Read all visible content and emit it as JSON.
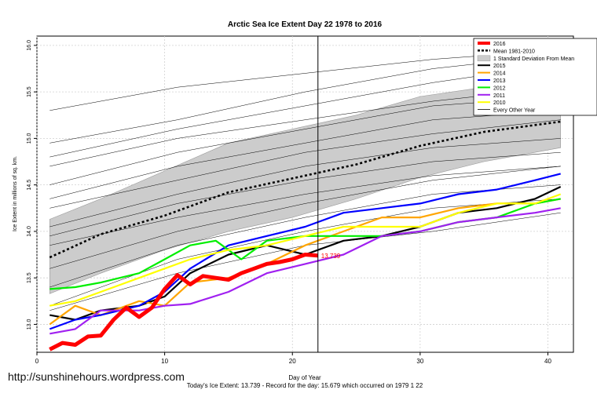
{
  "chart_data": {
    "type": "line",
    "title": "Arctic Sea Ice Extent Day 22 1978 to 2016",
    "xlabel": "Day of Year",
    "ylabel": "Ice Extent in millions of sq. km.",
    "xlim": [
      0,
      42
    ],
    "ylim": [
      12.7,
      16.1
    ],
    "xticks": [
      0,
      10,
      20,
      30,
      40
    ],
    "yticks": [
      13.0,
      13.5,
      14.0,
      14.5,
      15.0,
      15.5,
      16.0
    ],
    "grid": true,
    "legend_position": "top-right",
    "current_day": 22,
    "annotation": "13.739",
    "footer": "Today's Ice Extent: 13.739 - Record for the day: 15.679 which occurred on 1979 1 22",
    "band": {
      "name": "1 Standard Deviation From Mean",
      "color": "#cccccc",
      "x": [
        1,
        5,
        10,
        15,
        20,
        25,
        30,
        35,
        41
      ],
      "lower": [
        13.33,
        13.55,
        13.8,
        14.0,
        14.15,
        14.35,
        14.58,
        14.75,
        14.9
      ],
      "upper": [
        14.13,
        14.35,
        14.65,
        14.95,
        15.1,
        15.25,
        15.45,
        15.55,
        15.65
      ]
    },
    "background_years": {
      "name": "Every Other Year",
      "color": "#000000",
      "x": [
        1,
        11,
        21,
        31,
        41
      ],
      "lines": [
        [
          15.3,
          15.55,
          15.7,
          15.85,
          15.95
        ],
        [
          14.95,
          15.2,
          15.5,
          15.75,
          15.9
        ],
        [
          14.8,
          15.1,
          15.35,
          15.6,
          15.8
        ],
        [
          14.7,
          15.0,
          15.2,
          15.4,
          15.55
        ],
        [
          14.5,
          14.85,
          15.1,
          15.35,
          15.45
        ],
        [
          14.35,
          14.7,
          14.95,
          15.2,
          15.3
        ],
        [
          14.25,
          14.55,
          14.85,
          15.05,
          15.2
        ],
        [
          14.05,
          14.4,
          14.7,
          14.9,
          15.0
        ],
        [
          13.95,
          14.3,
          14.55,
          14.75,
          14.85
        ],
        [
          13.85,
          14.15,
          14.4,
          14.6,
          14.7
        ],
        [
          13.6,
          14.0,
          14.3,
          14.55,
          14.7
        ],
        [
          13.4,
          13.85,
          14.15,
          14.4,
          14.5
        ],
        [
          13.2,
          13.7,
          14.0,
          14.25,
          14.35
        ],
        [
          13.15,
          13.55,
          13.85,
          14.0,
          14.2
        ]
      ]
    },
    "series": [
      {
        "name": "Mean 1981-2010",
        "color": "#000000",
        "style": "dotted",
        "x": [
          1,
          5,
          10,
          15,
          20,
          25,
          30,
          35,
          41
        ],
        "values": [
          13.72,
          13.97,
          14.17,
          14.42,
          14.57,
          14.72,
          14.92,
          15.07,
          15.18
        ]
      },
      {
        "name": "2015",
        "color": "#000000",
        "style": "solid",
        "x": [
          1,
          3,
          5,
          8,
          10,
          12,
          15,
          18,
          21,
          24,
          27,
          30,
          33,
          36,
          39,
          41
        ],
        "values": [
          13.1,
          13.05,
          13.15,
          13.2,
          13.3,
          13.55,
          13.75,
          13.85,
          13.75,
          13.9,
          13.95,
          14.05,
          14.2,
          14.25,
          14.35,
          14.48
        ]
      },
      {
        "name": "2014",
        "color": "#ffa500",
        "style": "solid",
        "x": [
          1,
          3,
          5,
          8,
          10,
          12,
          15,
          18,
          21,
          24,
          27,
          30,
          33,
          36,
          39,
          41
        ],
        "values": [
          13.0,
          13.2,
          13.1,
          13.25,
          13.2,
          13.45,
          13.5,
          13.65,
          13.85,
          14.0,
          14.15,
          14.15,
          14.25,
          14.3,
          14.3,
          14.35
        ]
      },
      {
        "name": "2013",
        "color": "#0000ff",
        "style": "solid",
        "x": [
          1,
          3,
          5,
          8,
          10,
          12,
          15,
          18,
          21,
          24,
          27,
          30,
          33,
          36,
          39,
          41
        ],
        "values": [
          12.95,
          13.05,
          13.1,
          13.2,
          13.35,
          13.6,
          13.85,
          13.95,
          14.05,
          14.2,
          14.25,
          14.3,
          14.4,
          14.45,
          14.55,
          14.62
        ]
      },
      {
        "name": "2012",
        "color": "#00ee00",
        "style": "solid",
        "x": [
          1,
          3,
          5,
          8,
          10,
          12,
          14,
          16,
          18,
          21,
          24,
          27,
          30,
          33,
          36,
          39,
          41
        ],
        "values": [
          13.38,
          13.4,
          13.45,
          13.55,
          13.7,
          13.85,
          13.9,
          13.7,
          13.9,
          13.95,
          13.95,
          13.95,
          14.0,
          14.1,
          14.15,
          14.3,
          14.35
        ]
      },
      {
        "name": "2011",
        "color": "#a020f0",
        "style": "solid",
        "x": [
          1,
          3,
          5,
          8,
          10,
          12,
          15,
          18,
          21,
          24,
          27,
          30,
          33,
          36,
          39,
          41
        ],
        "values": [
          12.9,
          12.95,
          13.15,
          13.15,
          13.2,
          13.22,
          13.35,
          13.55,
          13.65,
          13.75,
          13.95,
          14.0,
          14.1,
          14.15,
          14.2,
          14.25
        ]
      },
      {
        "name": "2010",
        "color": "#ffff00",
        "style": "solid",
        "x": [
          1,
          3,
          5,
          8,
          10,
          12,
          15,
          18,
          21,
          24,
          27,
          30,
          33,
          36,
          39,
          41
        ],
        "values": [
          13.2,
          13.25,
          13.35,
          13.5,
          13.6,
          13.7,
          13.8,
          13.85,
          13.95,
          14.05,
          14.05,
          14.05,
          14.2,
          14.3,
          14.3,
          14.4
        ]
      },
      {
        "name": "2016",
        "color": "#ff0000",
        "style": "solid",
        "x": [
          1,
          2,
          3,
          4,
          5,
          6,
          7,
          8,
          9,
          10,
          11,
          12,
          13,
          14,
          15,
          16,
          17,
          18,
          19,
          20,
          21,
          22
        ],
        "values": [
          12.73,
          12.8,
          12.78,
          12.87,
          12.88,
          13.05,
          13.18,
          13.08,
          13.18,
          13.38,
          13.53,
          13.43,
          13.52,
          13.5,
          13.48,
          13.55,
          13.6,
          13.65,
          13.67,
          13.7,
          13.75,
          13.739
        ]
      }
    ],
    "legend": [
      {
        "label": "2016",
        "color": "#ff0000",
        "style": "thick"
      },
      {
        "label": "Mean 1981-2010",
        "color": "#000000",
        "style": "dotted"
      },
      {
        "label": "1 Standard Deviation From Mean",
        "color": "#cccccc",
        "style": "box"
      },
      {
        "label": "2015",
        "color": "#000000",
        "style": "solid"
      },
      {
        "label": "2014",
        "color": "#ffa500",
        "style": "solid"
      },
      {
        "label": "2013",
        "color": "#0000ff",
        "style": "solid"
      },
      {
        "label": "2012",
        "color": "#00ee00",
        "style": "solid"
      },
      {
        "label": "2011",
        "color": "#a020f0",
        "style": "solid"
      },
      {
        "label": "2010",
        "color": "#ffff00",
        "style": "solid"
      },
      {
        "label": "Every Other Year",
        "color": "#000000",
        "style": "thin"
      }
    ]
  },
  "credit": "http://sunshinehours.wordpress.com"
}
